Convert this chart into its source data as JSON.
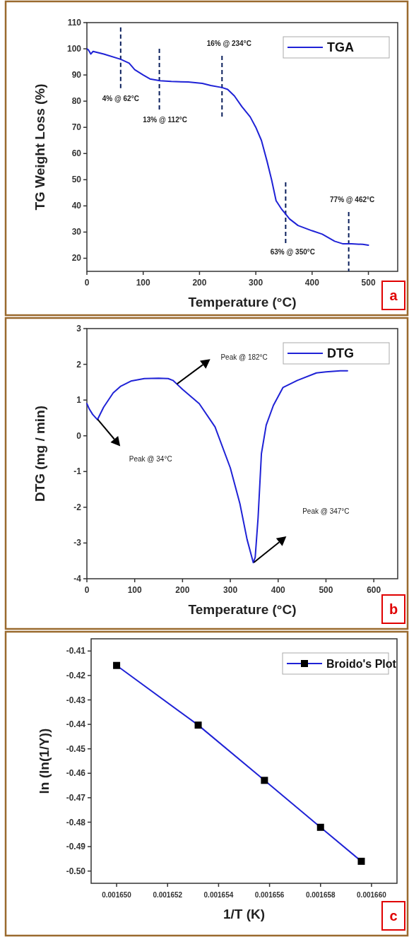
{
  "chart_data": [
    {
      "type": "line",
      "xlabel": "Temperature (°C)",
      "ylabel": "TG Weight Loss (%)",
      "xlim": [
        0,
        552
      ],
      "ylim": [
        15,
        110
      ],
      "xticks": [
        0,
        100,
        200,
        300,
        400,
        500
      ],
      "yticks": [
        20,
        30,
        40,
        50,
        60,
        70,
        80,
        90,
        100,
        110
      ],
      "grid": false,
      "legend": "top right",
      "line_style": "solid",
      "series": [
        {
          "name": "TGA",
          "color": "#1f22d6",
          "x": [
            0,
            3,
            7,
            11,
            30,
            60,
            75,
            85,
            100,
            112,
            130,
            150,
            180,
            205,
            220,
            240,
            250,
            262,
            275,
            290,
            300,
            310,
            320,
            328,
            336,
            345,
            360,
            375,
            400,
            418,
            440,
            455,
            470,
            490,
            500
          ],
          "values": [
            100,
            99.5,
            98,
            99,
            98,
            96,
            94.5,
            92,
            90,
            88.5,
            87.8,
            87.5,
            87.3,
            86.8,
            86,
            85.2,
            84.5,
            82,
            78,
            74,
            70,
            65,
            57,
            50,
            42,
            39,
            35,
            32.5,
            30.5,
            29.2,
            26.5,
            25.5,
            25.5,
            25.3,
            25
          ]
        }
      ],
      "ref_lines": [
        {
          "axis": "x",
          "value": 60,
          "label": "4% @ 62°C",
          "color": "#0a1f5c",
          "line_style": "dashed"
        },
        {
          "axis": "x",
          "value": 128.7,
          "label": "13% @ 112°C",
          "color": "#0a1f5c",
          "line_style": "dashed"
        },
        {
          "axis": "x",
          "value": 240,
          "label": "16% @ 234°C",
          "color": "#0a1f5c",
          "line_style": "dashed"
        },
        {
          "axis": "x",
          "value": 353,
          "label": "63% @ 350°C",
          "color": "#0a1f5c",
          "line_style": "dashed"
        },
        {
          "axis": "x",
          "value": 465,
          "label": "77% @ 462°C",
          "color": "#0a1f5c",
          "line_style": "dashed"
        }
      ],
      "annotations": [
        "a"
      ]
    },
    {
      "type": "line",
      "xlabel": "Temperature (°C)",
      "ylabel": "DTG (mg / min)",
      "xlim": [
        0,
        650
      ],
      "ylim": [
        -4,
        3
      ],
      "xticks": [
        0,
        100,
        200,
        300,
        400,
        500,
        600
      ],
      "yticks": [
        -4,
        -3,
        -2,
        -1,
        0,
        1,
        2,
        3
      ],
      "grid": false,
      "legend": "top right",
      "line_style": "solid",
      "series": [
        {
          "name": "DTG",
          "color": "#1f22d6",
          "x": [
            0,
            5,
            12,
            22,
            35,
            55,
            70,
            92,
            120,
            150,
            170,
            180,
            200,
            235,
            268,
            300,
            320,
            335,
            348,
            352,
            358,
            365,
            375,
            390,
            410,
            440,
            480,
            500,
            530,
            545
          ],
          "values": [
            0.9,
            0.75,
            0.6,
            0.45,
            0.8,
            1.2,
            1.38,
            1.53,
            1.6,
            1.61,
            1.6,
            1.55,
            1.3,
            0.9,
            0.25,
            -0.9,
            -1.9,
            -2.9,
            -3.55,
            -3.4,
            -2.3,
            -0.5,
            0.3,
            0.85,
            1.35,
            1.55,
            1.76,
            1.79,
            1.82,
            1.82
          ]
        }
      ],
      "annotations": [
        "Peak  @ 34°C",
        "Peak  @ 182°C",
        "Peak  @ 347°C",
        "b"
      ]
    },
    {
      "type": "line",
      "xlabel": "1/T (K)",
      "ylabel": "ln (ln(1/Y))",
      "xlim": [
        0.001649,
        0.001661
      ],
      "ylim": [
        -0.505,
        -0.405
      ],
      "xticks": [
        {
          "value": 0.00165,
          "label": "0.001650"
        },
        {
          "value": 0.001652,
          "label": "0.001652"
        },
        {
          "value": 0.001654,
          "label": "0.001654"
        },
        {
          "value": 0.001656,
          "label": "0.001656"
        },
        {
          "value": 0.001658,
          "label": "0.001658"
        },
        {
          "value": 0.00166,
          "label": "0.001660"
        }
      ],
      "yticks": [
        -0.41,
        -0.42,
        -0.43,
        -0.44,
        -0.45,
        -0.46,
        -0.47,
        -0.48,
        -0.49,
        {
          "value": -0.5,
          "label": "-0.50"
        }
      ],
      "grid": false,
      "legend": "top right",
      "marker": "square",
      "line_style": "solid",
      "series": [
        {
          "name": "Broido's Plot",
          "color": "#1f22d6",
          "x": [
            0.00165,
            0.0016532,
            0.0016558,
            0.001658,
            0.0016596
          ],
          "values": [
            -0.4159,
            -0.4403,
            -0.4629,
            -0.4821,
            -0.496
          ]
        }
      ],
      "annotations": [
        "c"
      ]
    }
  ]
}
